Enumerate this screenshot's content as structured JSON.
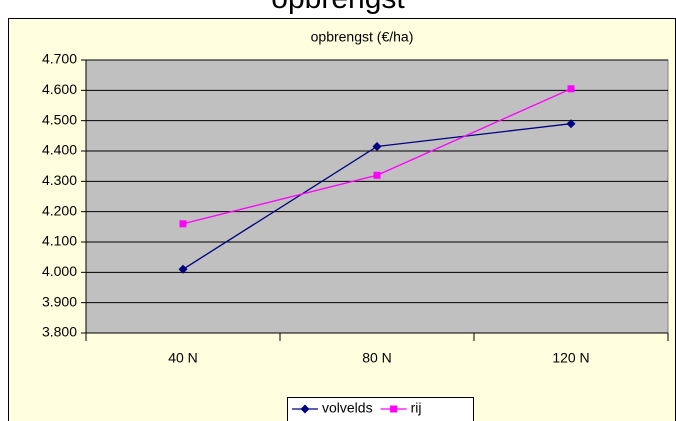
{
  "heading": "opbrengst",
  "chart_data": {
    "type": "line",
    "title": "opbrengst (€/ha)",
    "categories": [
      "40 N",
      "80 N",
      "120 N"
    ],
    "series": [
      {
        "name": "volvelds",
        "color": "#000080",
        "marker": "diamond",
        "values": [
          4010,
          4415,
          4490
        ]
      },
      {
        "name": "rij",
        "color": "#ff00ff",
        "marker": "square",
        "values": [
          4160,
          4320,
          4605
        ]
      }
    ],
    "ylim": [
      3800,
      4700
    ],
    "yticks": [
      {
        "value": 3800,
        "label": "3.800"
      },
      {
        "value": 3900,
        "label": "3.900"
      },
      {
        "value": 4000,
        "label": "4.000"
      },
      {
        "value": 4100,
        "label": "4.100"
      },
      {
        "value": 4200,
        "label": "4.200"
      },
      {
        "value": 4300,
        "label": "4.300"
      },
      {
        "value": 4400,
        "label": "4.400"
      },
      {
        "value": 4500,
        "label": "4.500"
      },
      {
        "value": 4600,
        "label": "4.600"
      },
      {
        "value": 4700,
        "label": "4.700"
      }
    ],
    "grid": true,
    "legend": "bottom"
  }
}
